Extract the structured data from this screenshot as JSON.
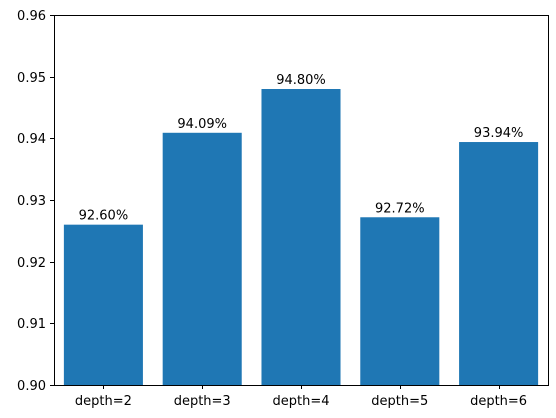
{
  "chart_data": {
    "type": "bar",
    "categories": [
      "depth=2",
      "depth=3",
      "depth=4",
      "depth=5",
      "depth=6"
    ],
    "values": [
      0.926,
      0.9409,
      0.948,
      0.9272,
      0.9394
    ],
    "data_labels": [
      "92.60%",
      "94.09%",
      "94.80%",
      "92.72%",
      "93.94%"
    ],
    "ylim": [
      0.9,
      0.96
    ],
    "yticks": [
      "0.90",
      "0.91",
      "0.92",
      "0.93",
      "0.94",
      "0.95",
      "0.96"
    ],
    "title": "",
    "xlabel": "",
    "ylabel": "",
    "bar_color": "#1f77b4",
    "grid": false
  }
}
